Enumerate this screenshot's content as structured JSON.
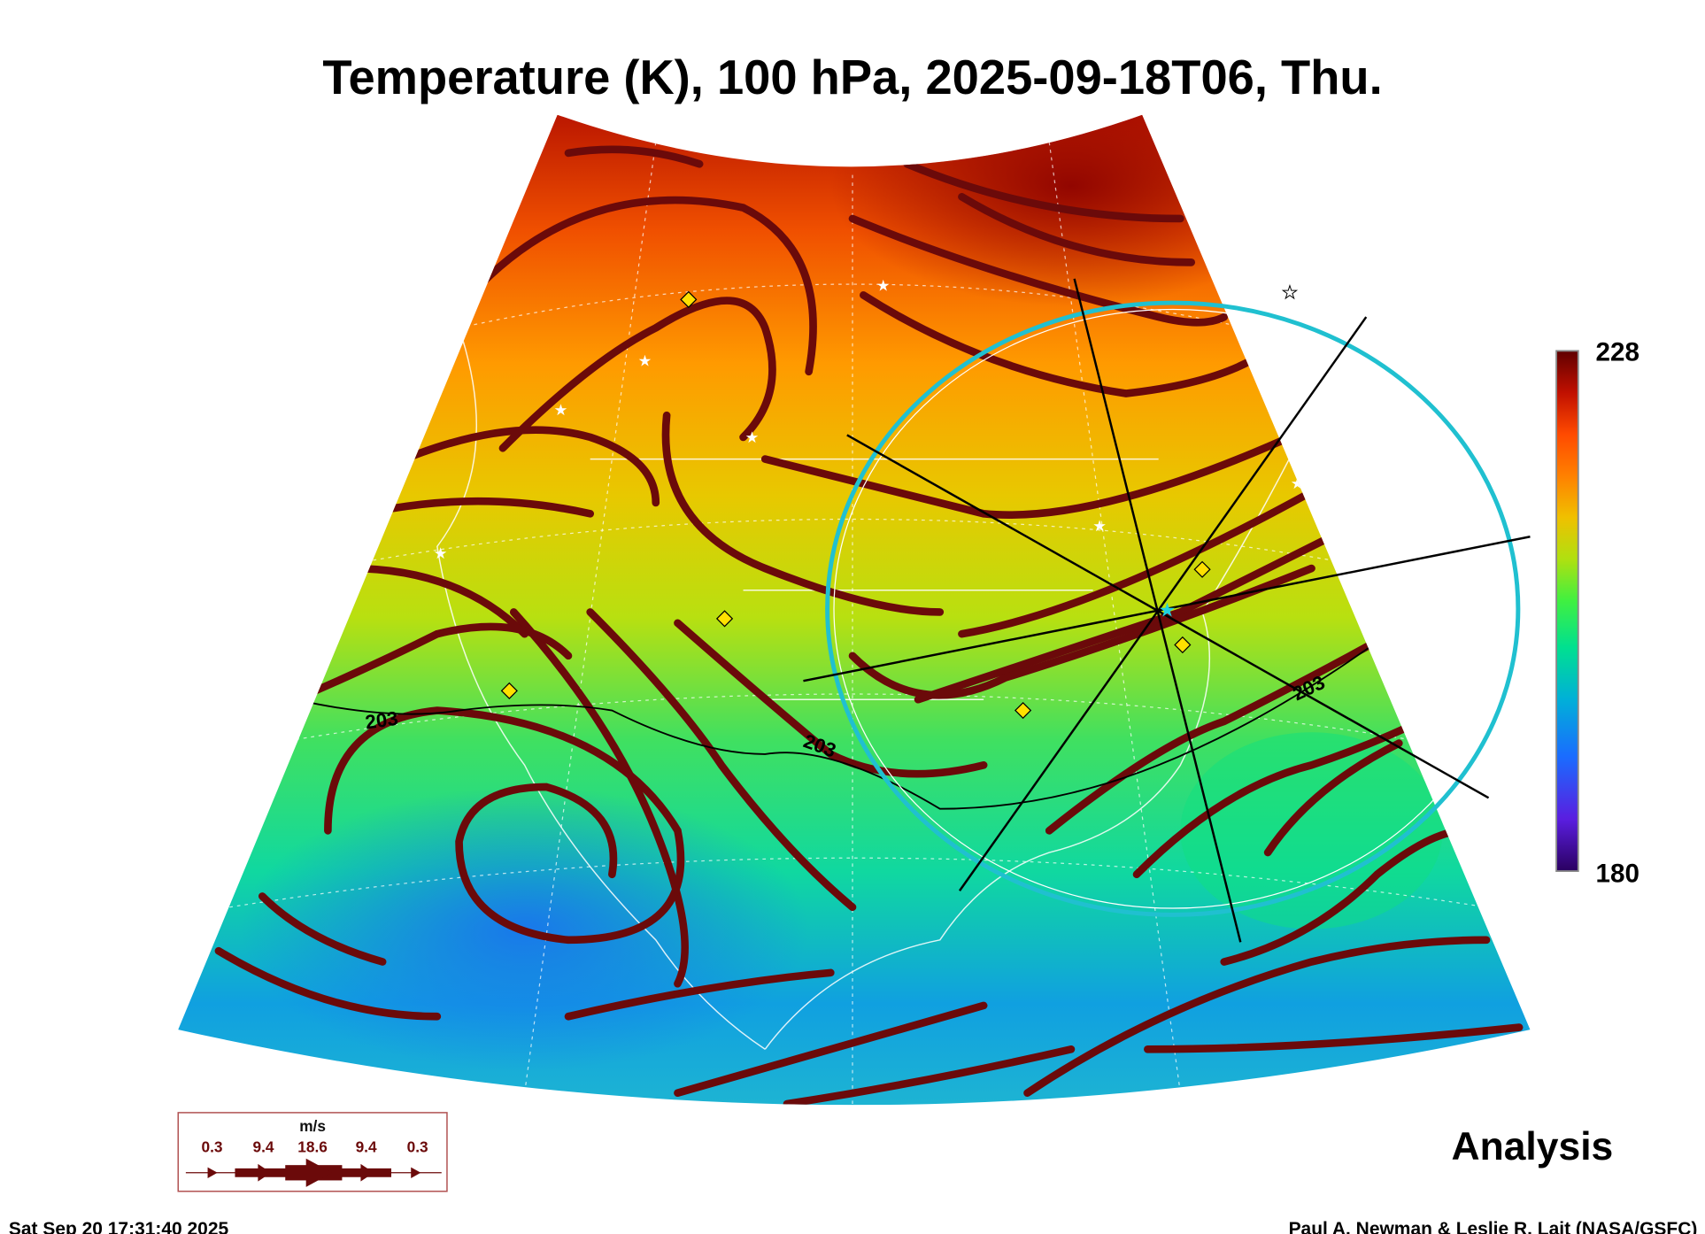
{
  "title": "Temperature (K), 100 hPa, 2025-09-18T06, Thu.",
  "colorbar": {
    "max_label": "228",
    "min_label": "180",
    "min": 180,
    "max": 228,
    "colors": [
      "#2a0060",
      "#5a1ee0",
      "#1a6cff",
      "#00b0d8",
      "#00e090",
      "#40f040",
      "#b0e010",
      "#f0c000",
      "#ff8000",
      "#ff4a00",
      "#c01000",
      "#600000"
    ]
  },
  "contour_labels": [
    "203",
    "203",
    "203"
  ],
  "wind_legend": {
    "unit": "m/s",
    "values": [
      "0.3",
      "9.4",
      "18.6",
      "9.4",
      "0.3"
    ]
  },
  "analysis_label": "Analysis",
  "footer": {
    "timestamp": "Sat Sep 20 17:31:40 2025",
    "credit": "Paul A. Newman & Leslie R. Lait (NASA/GSFC)"
  }
}
